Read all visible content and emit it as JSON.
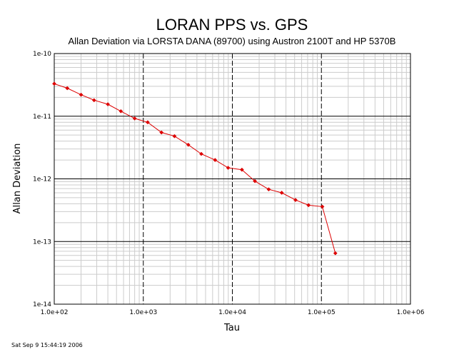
{
  "footer_timestamp": "Sat Sep  9 15:44:19 2006",
  "chart_data": {
    "type": "line",
    "title": "LORAN PPS vs. GPS",
    "subtitle": "Allan Deviation via LORSTA DANA (89700) using Austron 2100T and HP 5370B",
    "xlabel": "Tau",
    "ylabel": "Allan Deviation",
    "x_scale": "log",
    "y_scale": "log",
    "xlim": [
      100,
      1000000
    ],
    "ylim": [
      1e-14,
      1e-10
    ],
    "x_ticks": [
      {
        "value": 100,
        "label": "1.0e+02"
      },
      {
        "value": 1000,
        "label": "1.0e+03"
      },
      {
        "value": 10000,
        "label": "1.0e+04"
      },
      {
        "value": 100000,
        "label": "1.0e+05"
      },
      {
        "value": 1000000,
        "label": "1.0e+06"
      }
    ],
    "y_ticks": [
      {
        "value": 1e-10,
        "label": "1e-10"
      },
      {
        "value": 1e-11,
        "label": "1e-11"
      },
      {
        "value": 1e-12,
        "label": "1e-12"
      },
      {
        "value": 1e-13,
        "label": "1e-13"
      },
      {
        "value": 1e-14,
        "label": "1e-14"
      }
    ],
    "grid": true,
    "color": "#dd0000",
    "series": [
      {
        "x": [
          100,
          140,
          200,
          280,
          400,
          560,
          800,
          1120,
          1600,
          2240,
          3200,
          4480,
          6400,
          8960,
          12800,
          17920,
          25600,
          35840,
          51200,
          71680,
          102400,
          143360
        ],
        "y": [
          3.3e-11,
          2.8e-11,
          2.2e-11,
          1.8e-11,
          1.55e-11,
          1.2e-11,
          9.2e-12,
          8e-12,
          5.5e-12,
          4.8e-12,
          3.5e-12,
          2.5e-12,
          2e-12,
          1.5e-12,
          1.4e-12,
          9.2e-13,
          6.8e-13,
          6e-13,
          4.6e-13,
          3.8e-13,
          3.6e-13,
          6.5e-14
        ]
      }
    ]
  }
}
